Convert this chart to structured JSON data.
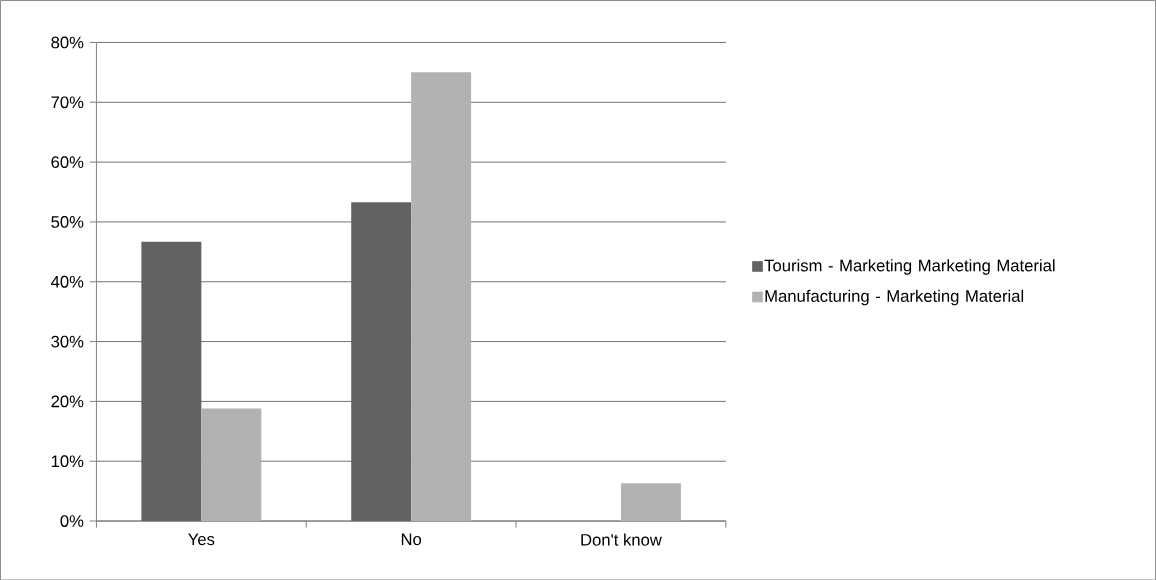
{
  "chart_data": {
    "type": "bar",
    "categories": [
      "Yes",
      "No",
      "Don't know"
    ],
    "series": [
      {
        "name": "Tourism - Marketing Marketing Material",
        "color": "#626262",
        "values": [
          46.7,
          53.3,
          0
        ]
      },
      {
        "name": "Manufacturing - Marketing Material",
        "color": "#b2b2b2",
        "values": [
          18.8,
          75,
          6.3
        ]
      }
    ],
    "ylim": [
      0,
      80
    ],
    "yticks": [
      {
        "value": 0,
        "label": "0%"
      },
      {
        "value": 10,
        "label": "10%"
      },
      {
        "value": 20,
        "label": "20%"
      },
      {
        "value": 30,
        "label": "30%"
      },
      {
        "value": 40,
        "label": "40%"
      },
      {
        "value": 50,
        "label": "50%"
      },
      {
        "value": 60,
        "label": "60%"
      },
      {
        "value": 70,
        "label": "70%"
      },
      {
        "value": 80,
        "label": "80%"
      }
    ],
    "grid": "y",
    "legend": "right"
  }
}
